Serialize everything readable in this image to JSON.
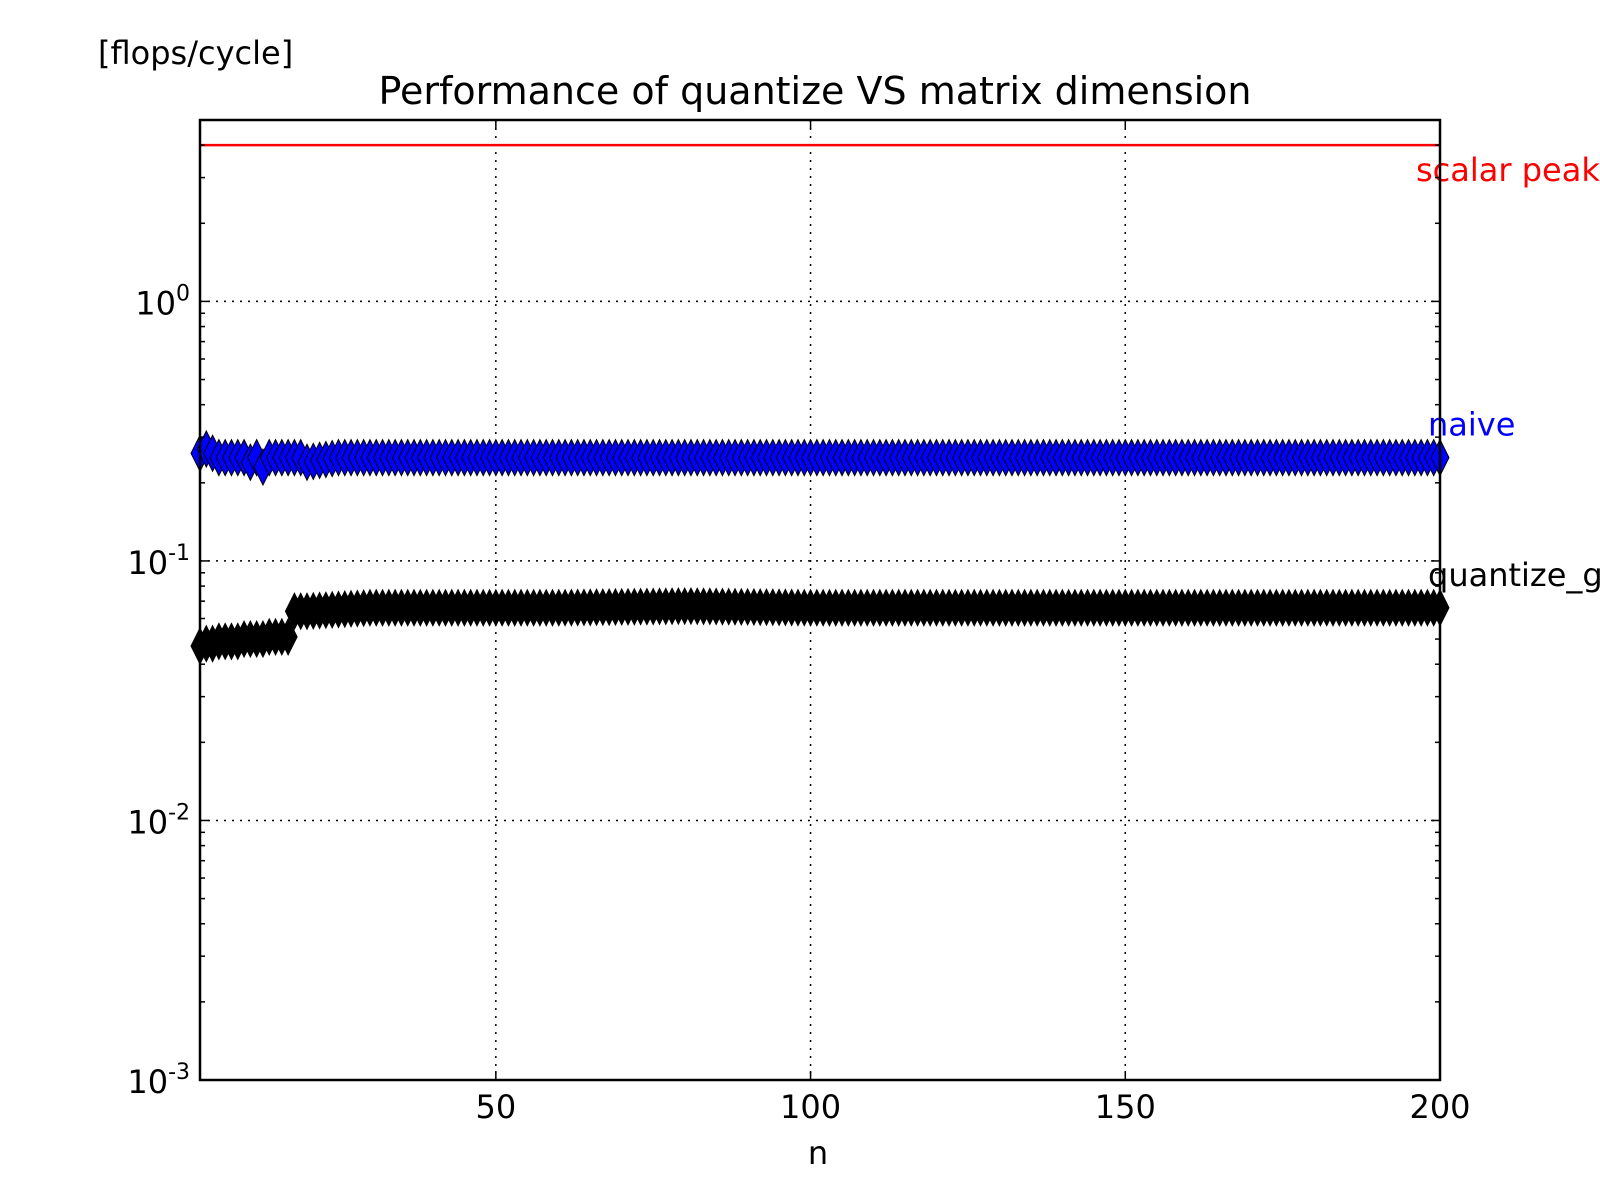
{
  "chart_data": {
    "type": "line",
    "title": "Performance of quantize VS matrix dimension",
    "ylabel": "[flops/cycle]",
    "xlabel": "n",
    "yscale": "log",
    "ylim": [
      0.001,
      5
    ],
    "xlim": [
      3,
      200
    ],
    "xticks": [
      {
        "value": 50,
        "label": "50"
      },
      {
        "value": 100,
        "label": "100"
      },
      {
        "value": 150,
        "label": "150"
      },
      {
        "value": 200,
        "label": "200"
      }
    ],
    "yticks": [
      {
        "value": 1,
        "base": "10",
        "exp": "0"
      },
      {
        "value": 0.1,
        "base": "10",
        "exp": "-1"
      },
      {
        "value": 0.01,
        "base": "10",
        "exp": "-2"
      },
      {
        "value": 0.001,
        "base": "10",
        "exp": "-3"
      }
    ],
    "grid": true,
    "series": [
      {
        "name": "scalar peak",
        "color": "#ff0000",
        "marker": "none",
        "x": [
          3,
          200
        ],
        "y": [
          4,
          4
        ]
      },
      {
        "name": "naive",
        "color": "#0000ff",
        "marker": "diamond",
        "x": [
          3,
          4,
          5,
          6,
          7,
          8,
          9,
          10,
          11,
          12,
          13,
          14,
          15,
          16,
          17,
          18,
          19,
          20,
          25,
          30,
          40,
          50,
          60,
          80,
          100,
          120,
          150,
          180,
          200
        ],
        "y": [
          0.26,
          0.27,
          0.26,
          0.25,
          0.25,
          0.25,
          0.25,
          0.25,
          0.24,
          0.25,
          0.23,
          0.25,
          0.25,
          0.25,
          0.25,
          0.25,
          0.25,
          0.24,
          0.25,
          0.25,
          0.25,
          0.25,
          0.25,
          0.25,
          0.25,
          0.25,
          0.25,
          0.25,
          0.25
        ]
      },
      {
        "name": "quantize_g",
        "color": "#000000",
        "marker": "diamond",
        "x": [
          3,
          4,
          5,
          6,
          7,
          8,
          9,
          10,
          11,
          12,
          13,
          14,
          15,
          16,
          17,
          18,
          19,
          20,
          25,
          30,
          40,
          50,
          60,
          80,
          100,
          120,
          150,
          180,
          200
        ],
        "y": [
          0.047,
          0.048,
          0.048,
          0.049,
          0.049,
          0.049,
          0.049,
          0.05,
          0.05,
          0.05,
          0.05,
          0.051,
          0.051,
          0.051,
          0.051,
          0.064,
          0.064,
          0.064,
          0.065,
          0.066,
          0.066,
          0.066,
          0.066,
          0.067,
          0.066,
          0.066,
          0.066,
          0.066,
          0.066
        ]
      }
    ]
  }
}
